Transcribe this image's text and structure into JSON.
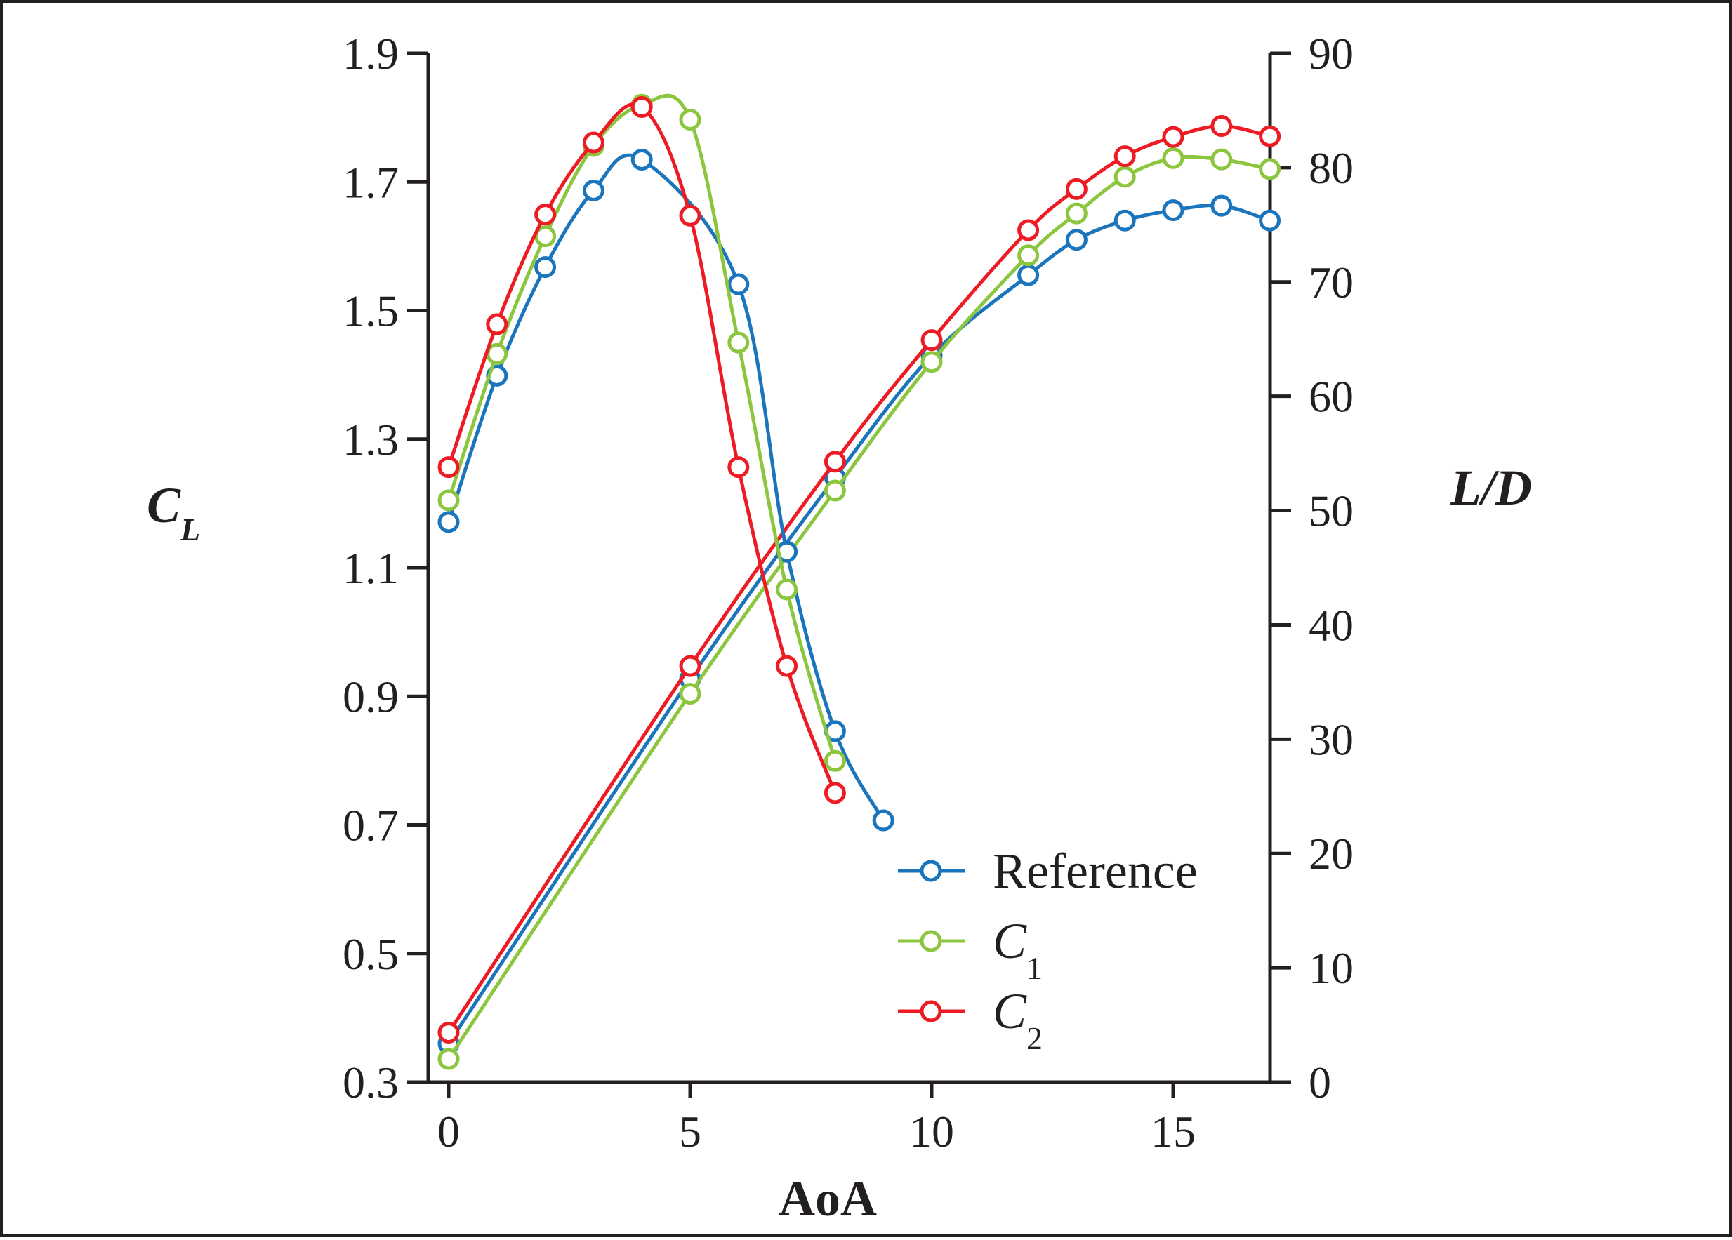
{
  "chart_data": {
    "type": "line",
    "xlabel": "AoA",
    "ylabel_left": {
      "main": "C",
      "sub": "L"
    },
    "ylabel_right": "L/D",
    "xlim": [
      0,
      17
    ],
    "ylim_left": [
      0.3,
      1.9
    ],
    "ylim_right": [
      0,
      90
    ],
    "x_ticks": [
      "0",
      "5",
      "10",
      "15"
    ],
    "y_left_ticks": [
      "0.3",
      "0.5",
      "0.7",
      "0.9",
      "1.1",
      "1.3",
      "1.5",
      "1.7",
      "1.9"
    ],
    "y_right_ticks": [
      "0",
      "10",
      "20",
      "30",
      "40",
      "50",
      "60",
      "70",
      "80",
      "90"
    ],
    "grid": false,
    "legend_position": "bottom-right",
    "legend": [
      {
        "main": "Reference",
        "sub": "",
        "color": "#1a75bc"
      },
      {
        "main": "C",
        "sub": "1",
        "color": "#8cc63f"
      },
      {
        "main": "C",
        "sub": "2",
        "color": "#ed1c24"
      }
    ],
    "series": [
      {
        "legend_index": 0,
        "axis": "left",
        "color": "#1a75bc",
        "x": [
          0,
          5,
          8,
          10,
          12,
          13,
          14,
          15,
          16,
          17
        ],
        "y": [
          0.36,
          0.927,
          1.24,
          1.43,
          1.555,
          1.61,
          1.64,
          1.656,
          1.663,
          1.64
        ]
      },
      {
        "legend_index": 1,
        "axis": "left",
        "color": "#8cc63f",
        "x": [
          0,
          5,
          8,
          10,
          12,
          13,
          14,
          15,
          16,
          17
        ],
        "y": [
          0.336,
          0.904,
          1.22,
          1.42,
          1.586,
          1.651,
          1.708,
          1.737,
          1.735,
          1.72
        ]
      },
      {
        "legend_index": 2,
        "axis": "left",
        "color": "#ed1c24",
        "x": [
          0,
          5,
          8,
          10,
          12,
          13,
          14,
          15,
          16,
          17
        ],
        "y": [
          0.377,
          0.947,
          1.265,
          1.454,
          1.625,
          1.689,
          1.74,
          1.77,
          1.787,
          1.771
        ]
      },
      {
        "legend_index": 0,
        "axis": "right",
        "color": "#1a75bc",
        "x": [
          0,
          1,
          2,
          3,
          4,
          6,
          7,
          8,
          9
        ],
        "y": [
          49.0,
          61.8,
          71.3,
          78.0,
          80.7,
          69.8,
          46.4,
          30.7,
          22.9
        ]
      },
      {
        "legend_index": 1,
        "axis": "right",
        "color": "#8cc63f",
        "x": [
          0,
          1,
          2,
          3,
          4,
          5,
          6,
          7,
          8
        ],
        "y": [
          50.9,
          63.7,
          74.0,
          81.9,
          85.5,
          84.2,
          64.7,
          43.1,
          28.1
        ]
      },
      {
        "legend_index": 2,
        "axis": "right",
        "color": "#ed1c24",
        "x": [
          0,
          1,
          2,
          3,
          4,
          5,
          6,
          7,
          8
        ],
        "y": [
          53.8,
          66.3,
          75.9,
          82.2,
          85.3,
          75.8,
          53.8,
          36.4,
          25.3
        ]
      }
    ]
  }
}
